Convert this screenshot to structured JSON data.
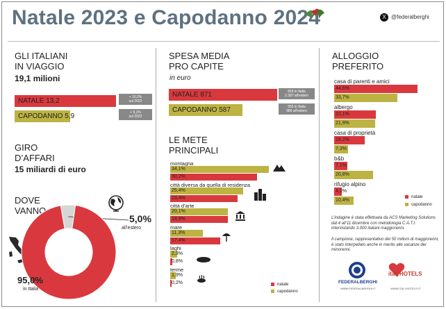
{
  "title": "Natale 2023 e Capodanno 2024",
  "social": "@federalberghi",
  "colors": {
    "natale": "#d9393e",
    "capodanno": "#bcb342",
    "title": "#5e7181"
  },
  "viaggio": {
    "head1": "GLI ITALIANI",
    "head2": "IN VIAGGIO",
    "total": "19,1 milioni",
    "natale_label": "NATALE 13,2",
    "capodanno_label": "CAPODANNO 5,9",
    "natale_note1": "+ 10,2%",
    "natale_note2": "sul 2022",
    "capodanno_note1": "+ 9,1%",
    "capodanno_note2": "sul 2022"
  },
  "affari": {
    "head1": "GIRO",
    "head2": "D’AFFARI",
    "value": "15 miliardi di euro"
  },
  "dove": {
    "head1": "DOVE",
    "head2": "VANNO",
    "estero_pct": "5,0%",
    "estero_label": "all’estero",
    "italia_pct": "95,0%",
    "italia_label": "in Italia"
  },
  "spesa": {
    "head1": "SPESA MEDIA",
    "head2": "PRO CAPITE",
    "unit": "in euro",
    "natale_label": "NATALE 871",
    "capodanno_label": "CAPODANNO 587",
    "natale_note1": "816 in Italia",
    "natale_note2": "2.397 all’estero",
    "capodanno_note1": "555 in Italia",
    "capodanno_note2": "980 all’estero"
  },
  "mete": {
    "head1": "LE METE",
    "head2": "PRINCIPALI",
    "legend_natale": "natale",
    "legend_capodanno": "capodanno"
  },
  "alloggio": {
    "head1": "ALLOGGIO",
    "head2": "PREFERITO",
    "legend_natale": "natale",
    "legend_capodanno": "capodanno"
  },
  "methodology": {
    "p1": "L’indagine è stata effettuata da ACS Marketing Solutions dal 4 all’11 dicembre con metodologia C.A.T.I. intervistando 3.000 italiani maggiorenni.",
    "p2": "Il campione, rappresentativo dei 50 milioni di maggiorenni, è stato interpellato anche in merito alle vacanze dei minorenni."
  },
  "logos": {
    "federalberghi": "FEDERALBERGHI",
    "federalberghi_url": "WWW.FEDERALBERGHI.IT",
    "italyhotels": "italyHOTELS",
    "italyhotels_url": "WWW.ITALYHOTELS.IT"
  },
  "chart_data": [
    {
      "type": "pie",
      "title": "DOVE VANNO",
      "categories": [
        "in Italia",
        "all’estero"
      ],
      "values": [
        95.0,
        5.0
      ],
      "unit": "%",
      "colors": [
        "#d9393e",
        "#d6d6d6"
      ]
    },
    {
      "type": "bar",
      "orientation": "horizontal",
      "title": "LE METE PRINCIPALI",
      "categories": [
        "montagna",
        "città diversa da quella di residenza",
        "città d’arte",
        "mare",
        "laghi",
        "terme"
      ],
      "series": [
        {
          "name": "natale",
          "values": [
            30.2,
            23.4,
            19.9,
            17.4,
            0.8,
            0.2
          ],
          "labels": [
            "30,2%",
            "23,4%",
            "19,9%",
            "17,4%",
            "0,8%",
            "0,2%"
          ]
        },
        {
          "name": "capodanno",
          "values": [
            34.1,
            25.4,
            20.1,
            11.3,
            2.3,
            1.9
          ],
          "labels": [
            "34,1%",
            "25,4%",
            "20,1%",
            "11,3%",
            "2,3%",
            "1,9%"
          ]
        }
      ],
      "unit": "%",
      "legend": "bottom-right"
    },
    {
      "type": "bar",
      "orientation": "horizontal",
      "title": "ALLOGGIO PREFERITO",
      "categories": [
        "casa di parenti e amici",
        "albergo",
        "casa di proprietà",
        "b&b",
        "rifugio alpino"
      ],
      "series": [
        {
          "name": "natale",
          "values": [
            44.6,
            22.1,
            16.2,
            7.1,
            4.2
          ],
          "labels": [
            "44,6%",
            "22,1%",
            "16,2%",
            "7,1%",
            "4,2%"
          ]
        },
        {
          "name": "capodanno",
          "values": [
            33.7,
            21.9,
            7.3,
            20.8,
            10.4
          ],
          "labels": [
            "33,7%",
            "21,9%",
            "7,3%",
            "20,8%",
            "10,4%"
          ]
        }
      ],
      "unit": "%",
      "legend": "right"
    }
  ]
}
